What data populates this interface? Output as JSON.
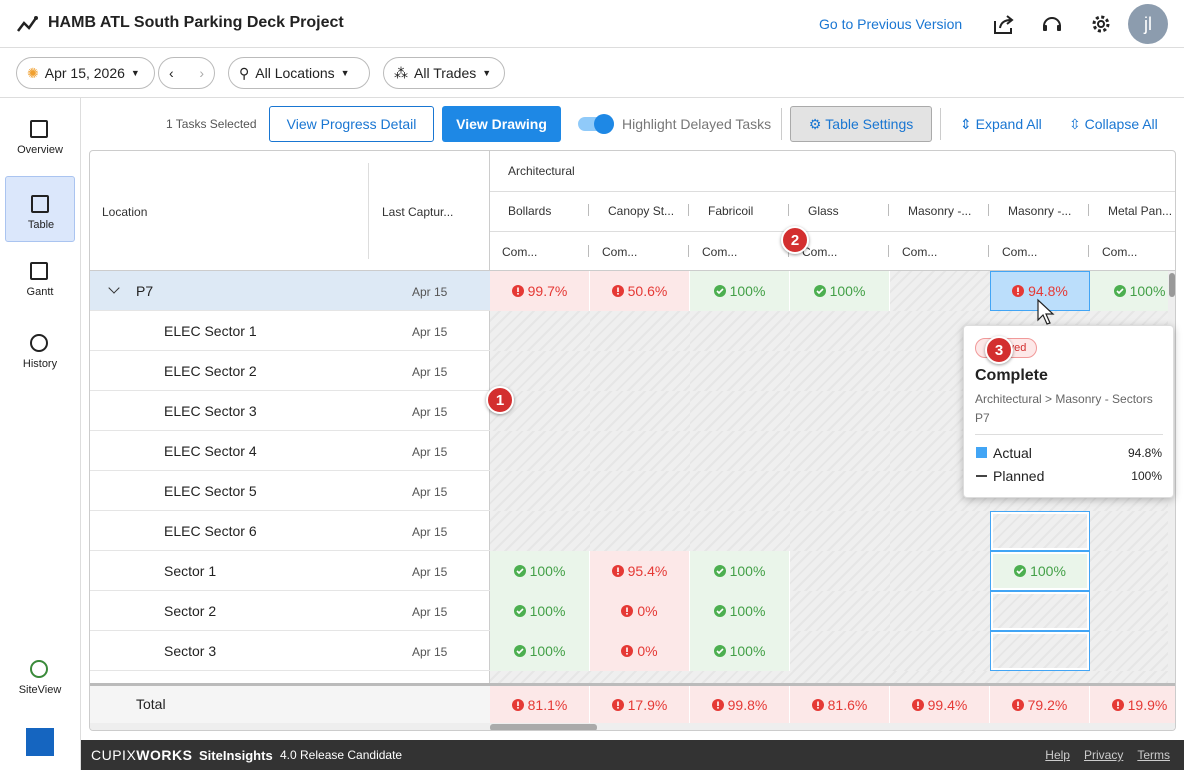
{
  "header": {
    "title": "HAMB ATL South Parking Deck Project",
    "previous_version": "Go to Previous Version",
    "avatar": "jl"
  },
  "filters": {
    "date": "Apr 15, 2026",
    "locations": "All Locations",
    "trades": "All Trades"
  },
  "sidebar": [
    "Overview",
    "Table",
    "Gantt",
    "History",
    "SiteView"
  ],
  "toolbar": {
    "selected": "1 Tasks Selected",
    "progress_detail": "View Progress Detail",
    "view_drawing": "View Drawing",
    "highlight": "Highlight Delayed Tasks",
    "table_settings": "Table Settings",
    "expand": "Expand All",
    "collapse": "Collapse All"
  },
  "table": {
    "location_header": "Location",
    "capture_header": "Last Captur...",
    "group": "Architectural",
    "columns": [
      "Bollards",
      "Canopy St...",
      "Fabricoil",
      "Glass",
      "Masonry -...",
      "Masonry -...",
      "Metal Pan..."
    ],
    "sub_header": "Com...",
    "rows": [
      {
        "name": "P7",
        "date": "Apr 15",
        "cells": [
          {
            "text": "99.7%",
            "status": "delayed"
          },
          {
            "text": "50.6%",
            "status": "delayed"
          },
          {
            "text": "100%",
            "status": "ok"
          },
          {
            "text": "100%",
            "status": "ok"
          },
          null,
          {
            "text": "94.8%",
            "status": "delayed"
          },
          {
            "text": "100%",
            "status": "ok"
          }
        ]
      },
      {
        "name": "ELEC Sector 1",
        "date": "Apr 15",
        "cells": [
          null,
          null,
          null,
          null,
          null,
          null,
          null
        ]
      },
      {
        "name": "ELEC Sector 2",
        "date": "Apr 15",
        "cells": [
          null,
          null,
          null,
          null,
          null,
          null,
          null
        ]
      },
      {
        "name": "ELEC Sector 3",
        "date": "Apr 15",
        "cells": [
          null,
          null,
          null,
          null,
          null,
          null,
          null
        ]
      },
      {
        "name": "ELEC Sector 4",
        "date": "Apr 15",
        "cells": [
          null,
          null,
          null,
          null,
          null,
          null,
          null
        ]
      },
      {
        "name": "ELEC Sector 5",
        "date": "Apr 15",
        "cells": [
          null,
          null,
          null,
          null,
          null,
          null,
          null
        ]
      },
      {
        "name": "ELEC Sector 6",
        "date": "Apr 15",
        "cells": [
          null,
          null,
          null,
          null,
          null,
          null,
          null
        ]
      },
      {
        "name": "Sector 1",
        "date": "Apr 15",
        "cells": [
          {
            "text": "100%",
            "status": "ok"
          },
          {
            "text": "95.4%",
            "status": "delayed"
          },
          {
            "text": "100%",
            "status": "ok"
          },
          null,
          null,
          {
            "text": "100%",
            "status": "ok"
          },
          null
        ]
      },
      {
        "name": "Sector 2",
        "date": "Apr 15",
        "cells": [
          {
            "text": "100%",
            "status": "ok"
          },
          {
            "text": "0%",
            "status": "delayed"
          },
          {
            "text": "100%",
            "status": "ok"
          },
          null,
          null,
          null,
          null
        ]
      },
      {
        "name": "Sector 3",
        "date": "Apr 15",
        "cells": [
          {
            "text": "100%",
            "status": "ok"
          },
          {
            "text": "0%",
            "status": "delayed"
          },
          {
            "text": "100%",
            "status": "ok"
          },
          null,
          null,
          null,
          null
        ]
      }
    ],
    "total": {
      "name": "Total",
      "cells": [
        {
          "text": "81.1%",
          "status": "delayed"
        },
        {
          "text": "17.9%",
          "status": "delayed"
        },
        {
          "text": "99.8%",
          "status": "delayed"
        },
        {
          "text": "81.6%",
          "status": "delayed"
        },
        {
          "text": "99.4%",
          "status": "delayed"
        },
        {
          "text": "79.2%",
          "status": "delayed"
        },
        {
          "text": "19.9%",
          "status": "delayed"
        }
      ]
    }
  },
  "markers": [
    "1",
    "2",
    "3"
  ],
  "tooltip": {
    "badge": "Delayed",
    "title": "Complete",
    "path": "Architectural > Masonry - Sectors",
    "location": "P7",
    "actual_label": "Actual",
    "actual": "94.8%",
    "planned_label": "Planned",
    "planned": "100%"
  },
  "footer": {
    "brand_a": "CUPIX",
    "brand_b": "WORKS",
    "product": "SiteInsights",
    "version": "4.0 Release Candidate",
    "links": [
      "Help",
      "Privacy",
      "Terms"
    ]
  }
}
